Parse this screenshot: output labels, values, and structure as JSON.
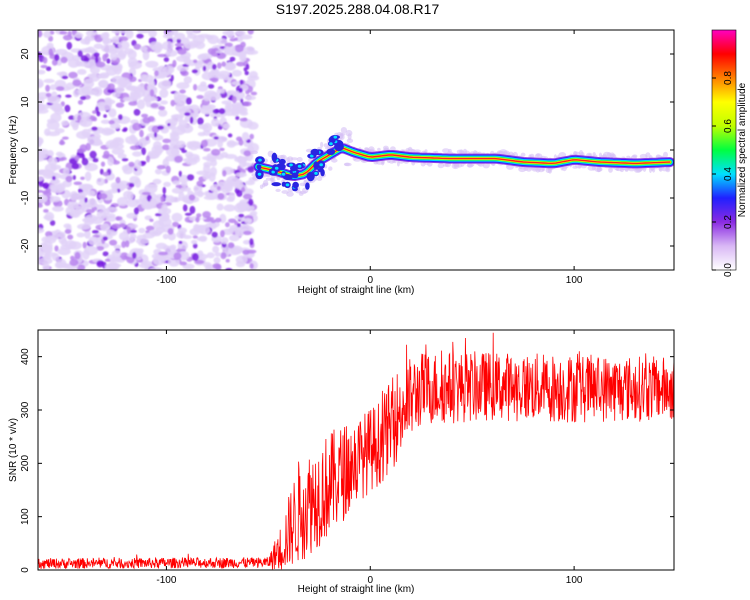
{
  "title": "S197.2025.288.04.08.R17",
  "chart_data": [
    {
      "type": "heatmap",
      "id": "spectrogram",
      "xlabel": "Height of straight line (km)",
      "ylabel": "Frequency (Hz)",
      "xlim": [
        -163,
        149
      ],
      "ylim": [
        -25,
        25
      ],
      "xticks": [
        -100,
        0,
        100
      ],
      "yticks": [
        -20,
        -10,
        0,
        10,
        20
      ],
      "noise_region_x": [
        -163,
        -57
      ],
      "signal_track": [
        {
          "x": -55,
          "y": -3.5
        },
        {
          "x": -45,
          "y": -4.5
        },
        {
          "x": -38,
          "y": -5.5
        },
        {
          "x": -32,
          "y": -5
        },
        {
          "x": -26,
          "y": -2.5
        },
        {
          "x": -20,
          "y": -1
        },
        {
          "x": -14,
          "y": 0.5
        },
        {
          "x": -8,
          "y": -0.5
        },
        {
          "x": 0,
          "y": -1.5
        },
        {
          "x": 10,
          "y": -1
        },
        {
          "x": 20,
          "y": -1.5
        },
        {
          "x": 40,
          "y": -1.8
        },
        {
          "x": 62,
          "y": -1.8
        },
        {
          "x": 75,
          "y": -2.5
        },
        {
          "x": 90,
          "y": -2.8
        },
        {
          "x": 100,
          "y": -2
        },
        {
          "x": 112,
          "y": -2.5
        },
        {
          "x": 130,
          "y": -2.8
        },
        {
          "x": 148,
          "y": -2.5
        }
      ],
      "colorbar": {
        "label": "Normalized spectral amplitude",
        "range": [
          0,
          1
        ],
        "ticks": [
          0.0,
          0.2,
          0.4,
          0.6,
          0.8
        ],
        "tick_labels": [
          "0.0",
          "0.2",
          "0.4",
          "0.6",
          "0.8"
        ],
        "colors": [
          "#ffffff",
          "#d9b8f5",
          "#8a2be2",
          "#2020ff",
          "#00e0ff",
          "#00ff40",
          "#c0ff00",
          "#ffff00",
          "#ff8000",
          "#ff0000",
          "#ff00c0"
        ]
      }
    },
    {
      "type": "line",
      "id": "snr",
      "xlabel": "Height of straight line (km)",
      "ylabel": "SNR (10 * v/v)",
      "xlim": [
        -163,
        149
      ],
      "ylim": [
        0,
        450
      ],
      "xticks": [
        -100,
        0,
        100
      ],
      "yticks": [
        0,
        100,
        200,
        300,
        400
      ],
      "color": "#ff0000",
      "envelope": [
        {
          "x": -163,
          "mean": 12,
          "amp": 10
        },
        {
          "x": -50,
          "mean": 14,
          "amp": 10
        },
        {
          "x": -44,
          "mean": 40,
          "amp": 45
        },
        {
          "x": -35,
          "mean": 110,
          "amp": 100
        },
        {
          "x": -20,
          "mean": 160,
          "amp": 100
        },
        {
          "x": -5,
          "mean": 210,
          "amp": 80
        },
        {
          "x": 5,
          "mean": 240,
          "amp": 80
        },
        {
          "x": 15,
          "mean": 300,
          "amp": 90
        },
        {
          "x": 25,
          "mean": 340,
          "amp": 70
        },
        {
          "x": 60,
          "mean": 345,
          "amp": 65
        },
        {
          "x": 100,
          "mean": 340,
          "amp": 65
        },
        {
          "x": 149,
          "mean": 340,
          "amp": 60
        }
      ]
    }
  ]
}
